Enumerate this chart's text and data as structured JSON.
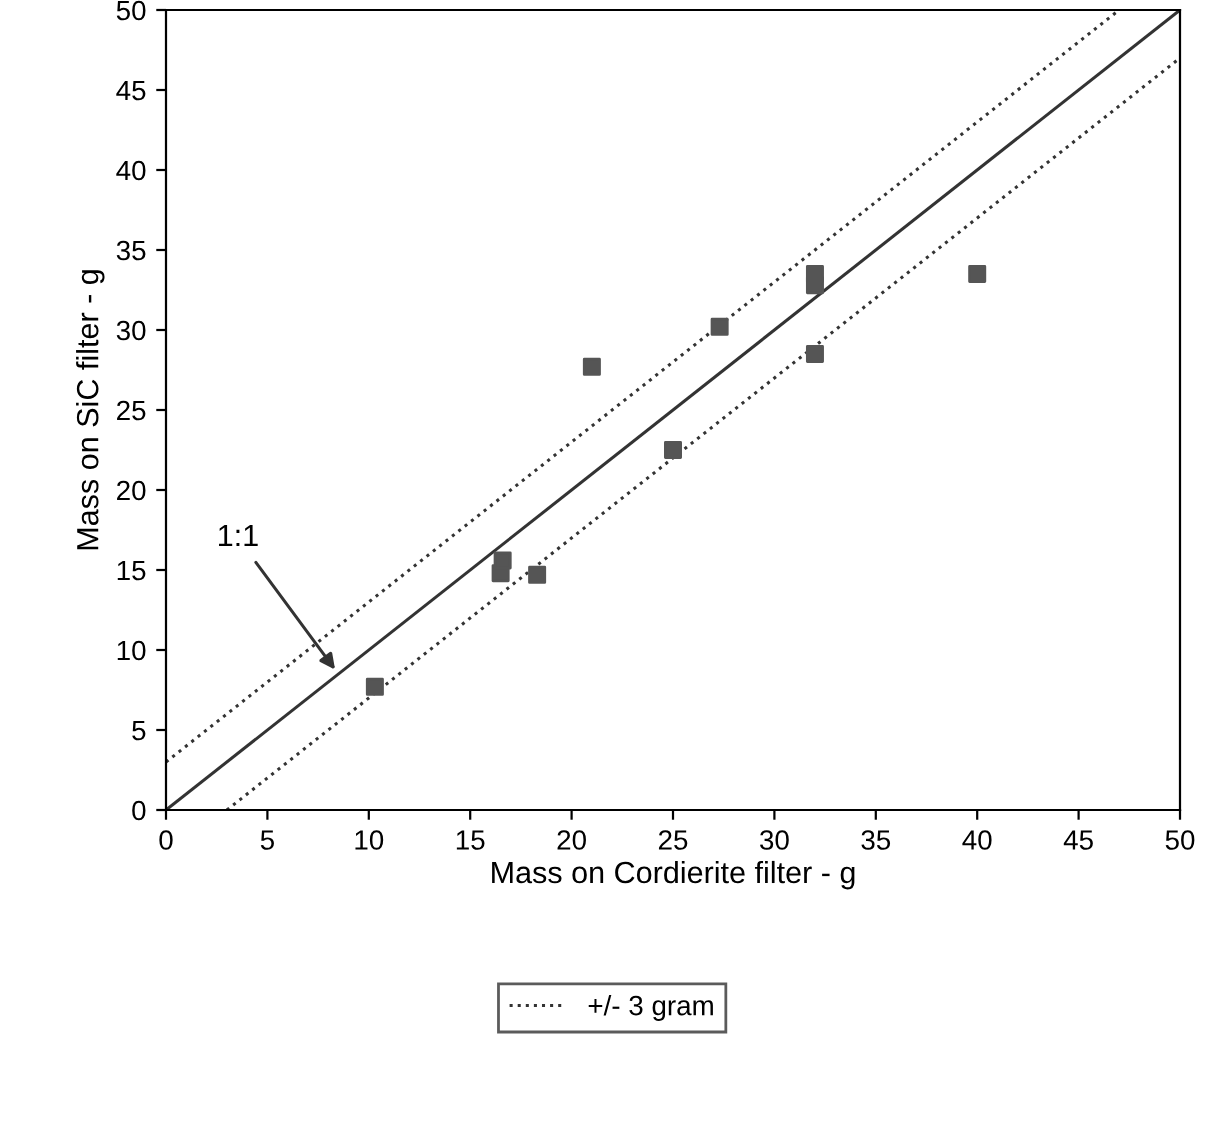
{
  "chart_data": {
    "type": "scatter",
    "xlabel": "Mass on Cordierite filter - g",
    "ylabel": "Mass on SiC filter - g",
    "xlim": [
      0,
      50
    ],
    "ylim": [
      0,
      50
    ],
    "xticks": [
      0,
      5,
      10,
      15,
      20,
      25,
      30,
      35,
      40,
      45,
      50
    ],
    "yticks": [
      0,
      5,
      10,
      15,
      20,
      25,
      30,
      35,
      40,
      45,
      50
    ],
    "grid": false,
    "legend": "bottom",
    "series": [
      {
        "marker": "square",
        "color": "#555555",
        "x": [
          10.3,
          16.5,
          16.6,
          18.3,
          21,
          25,
          27.3,
          32,
          32,
          32,
          40
        ],
        "values": [
          7.7,
          14.8,
          15.6,
          14.7,
          27.7,
          22.5,
          30.2,
          32.8,
          33.5,
          28.5,
          33.5
        ]
      },
      {
        "type": "line",
        "marker": "none",
        "color": "#333333",
        "line_style": "solid",
        "x": [
          0,
          50
        ],
        "values": [
          0,
          50
        ]
      },
      {
        "type": "line",
        "marker": "none",
        "name": "+/- 3 gram",
        "color": "#333333",
        "line_style": "dotted",
        "x": [
          0,
          47
        ],
        "values": [
          3,
          50
        ]
      },
      {
        "type": "line",
        "marker": "none",
        "color": "#333333",
        "line_style": "dotted",
        "x": [
          3,
          50
        ],
        "values": [
          0,
          47
        ]
      }
    ],
    "annotations": [
      {
        "text": "1:1",
        "x": 8.5,
        "y": 8.5
      }
    ]
  }
}
